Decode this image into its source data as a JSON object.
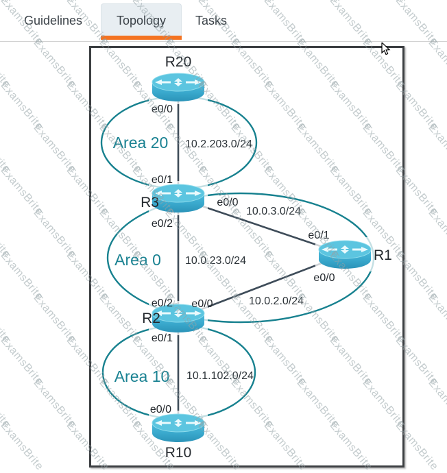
{
  "app": {
    "tabs": [
      {
        "label": "Guidelines",
        "active": false
      },
      {
        "label": "Topology",
        "active": true
      },
      {
        "label": "Tasks",
        "active": false
      }
    ]
  },
  "watermark": {
    "text": "ExamsBrite"
  },
  "colors": {
    "tab_active_underline": "#f47321",
    "tab_active_bg": "#e8eef2",
    "area_teal": "#17818f",
    "link_slate": "#3e4c59",
    "router_cyan": "#41b2d4",
    "diagram_border": "#3c3f42"
  },
  "diagram": {
    "routers": [
      {
        "id": "R20",
        "label": "R20"
      },
      {
        "id": "R3",
        "label": "R3"
      },
      {
        "id": "R1",
        "label": "R1"
      },
      {
        "id": "R2",
        "label": "R2"
      },
      {
        "id": "R10",
        "label": "R10"
      }
    ],
    "areas": [
      {
        "label": "Area 20"
      },
      {
        "label": "Area 0"
      },
      {
        "label": "Area 10"
      }
    ],
    "links": [
      {
        "from": "R20",
        "to": "R3",
        "network": "10.2.203.0/24",
        "from_if": "e0/0",
        "to_if": "e0/1"
      },
      {
        "from": "R3",
        "to": "R1",
        "network": "10.0.3.0/24",
        "from_if": "e0/0",
        "to_if": "e0/1"
      },
      {
        "from": "R3",
        "to": "R2",
        "network": "10.0.23.0/24",
        "from_if": "e0/2",
        "to_if": "e0/2"
      },
      {
        "from": "R2",
        "to": "R1",
        "network": "10.0.2.0/24",
        "from_if": "e0/0",
        "to_if": "e0/0"
      },
      {
        "from": "R2",
        "to": "R10",
        "network": "10.1.102.0/24",
        "from_if": "e0/1",
        "to_if": "e0/0"
      }
    ]
  }
}
